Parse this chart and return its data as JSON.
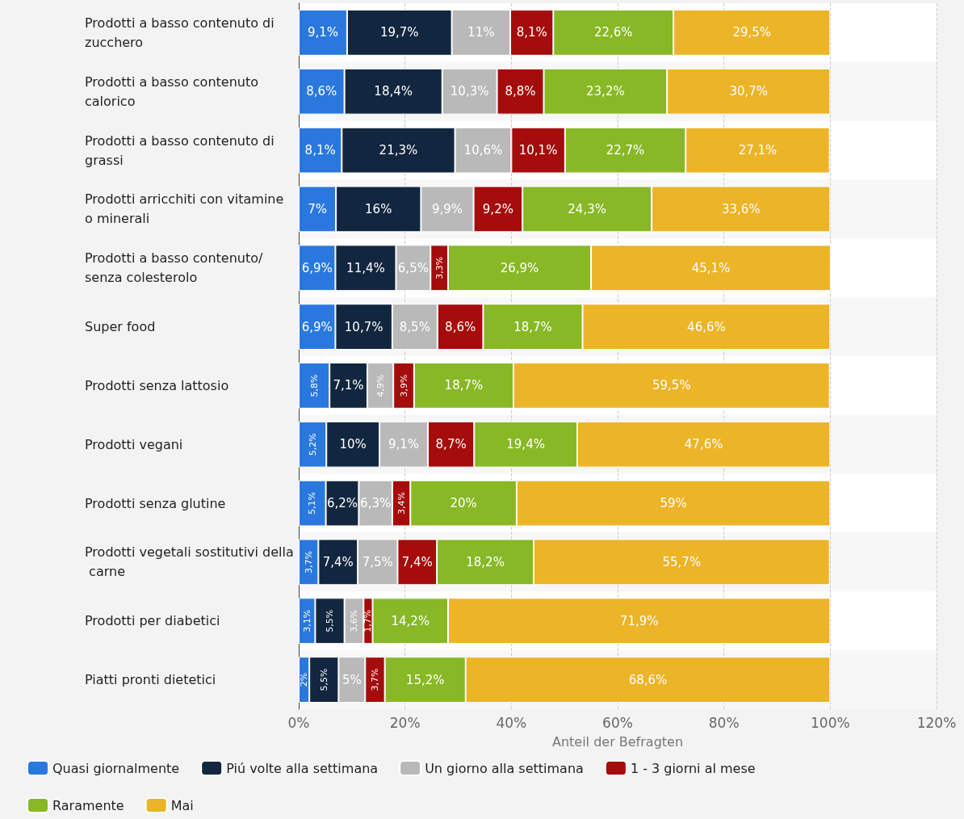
{
  "chart_data": {
    "type": "bar",
    "orientation": "horizontal",
    "stacked": true,
    "categories": [
      "Prodotti a basso contenuto di zucchero",
      "Prodotti a basso contenuto calorico",
      "Prodotti a basso contenuto di grassi",
      "Prodotti arricchiti con vitamine o minerali",
      "Prodotti a basso contenuto/senza colesterolo",
      "Super food",
      "Prodotti senza lattosio",
      "Prodotti vegani",
      "Prodotti senza glutine",
      "Prodotti vegetali sostitutivi della carne",
      "Prodotti per diabetici",
      "Piatti pronti dietetici"
    ],
    "series": [
      {
        "name": "Quasi giornalmente",
        "color": "#2a78de",
        "values": [
          9.1,
          8.6,
          8.1,
          7,
          6.9,
          6.9,
          5.8,
          5.2,
          5.1,
          3.7,
          3.1,
          2
        ],
        "value_labels": [
          "9,1%",
          "8,6%",
          "8,1%",
          "7%",
          "6,9%",
          "6,9%",
          "5,8%",
          "5,2%",
          "5,1%",
          "3,7%",
          "3,1%",
          "2%"
        ]
      },
      {
        "name": "Piú volte alla settimana",
        "color": "#12263f",
        "values": [
          19.7,
          18.4,
          21.3,
          16,
          11.4,
          10.7,
          7.1,
          10,
          6.2,
          7.4,
          5.5,
          5.5
        ],
        "value_labels": [
          "19,7%",
          "18,4%",
          "21,3%",
          "16%",
          "11,4%",
          "10,7%",
          "7,1%",
          "10%",
          "6,2%",
          "7,4%",
          "5,5%",
          "5,5%"
        ]
      },
      {
        "name": "Un giorno alla settimana",
        "color": "#b9b9b9",
        "values": [
          11,
          10.3,
          10.6,
          9.9,
          6.5,
          8.5,
          4.9,
          9.1,
          6.3,
          7.5,
          3.6,
          5
        ],
        "value_labels": [
          "11%",
          "10,3%",
          "10,6%",
          "9,9%",
          "6,5%",
          "8,5%",
          "4,9%",
          "9,1%",
          "6,3%",
          "7,5%",
          "3,6%",
          "5%"
        ]
      },
      {
        "name": "1 - 3 giorni al mese",
        "color": "#a50c0c",
        "values": [
          8.1,
          8.8,
          10.1,
          9.2,
          3.3,
          8.6,
          3.9,
          8.7,
          3.4,
          7.4,
          1.7,
          3.7
        ],
        "value_labels": [
          "8,1%",
          "8,8%",
          "10,1%",
          "9,2%",
          "3,3%",
          "8,6%",
          "3,9%",
          "8,7%",
          "3,4%",
          "7,4%",
          "1,7%",
          "3,7%"
        ]
      },
      {
        "name": "Raramente",
        "color": "#88b825",
        "values": [
          22.6,
          23.2,
          22.7,
          24.3,
          26.9,
          18.7,
          18.7,
          19.4,
          20,
          18.2,
          14.2,
          15.2
        ],
        "value_labels": [
          "22,6%",
          "23,2%",
          "22,7%",
          "24,3%",
          "26,9%",
          "18,7%",
          "18,7%",
          "19,4%",
          "20%",
          "18,2%",
          "14,2%",
          "15,2%"
        ]
      },
      {
        "name": "Mai",
        "color": "#ecb427",
        "values": [
          29.5,
          30.7,
          27.1,
          33.6,
          45.1,
          46.6,
          59.5,
          47.6,
          59,
          55.7,
          71.9,
          68.6
        ],
        "value_labels": [
          "29,5%",
          "30,7%",
          "27,1%",
          "33,6%",
          "45,1%",
          "46,6%",
          "59,5%",
          "47,6%",
          "59%",
          "55,7%",
          "71,9%",
          "68,6%"
        ]
      }
    ],
    "xlim": [
      0,
      120
    ],
    "xticks": [
      {
        "value": 0,
        "label": "0%"
      },
      {
        "value": 20,
        "label": "20%"
      },
      {
        "value": 40,
        "label": "40%"
      },
      {
        "value": 60,
        "label": "60%"
      },
      {
        "value": 80,
        "label": "80%"
      },
      {
        "value": 100,
        "label": "100%"
      },
      {
        "value": 120,
        "label": "120%"
      }
    ],
    "xlabel": "Anteil der Befragten",
    "grid": "x",
    "legend": "bottom left"
  }
}
